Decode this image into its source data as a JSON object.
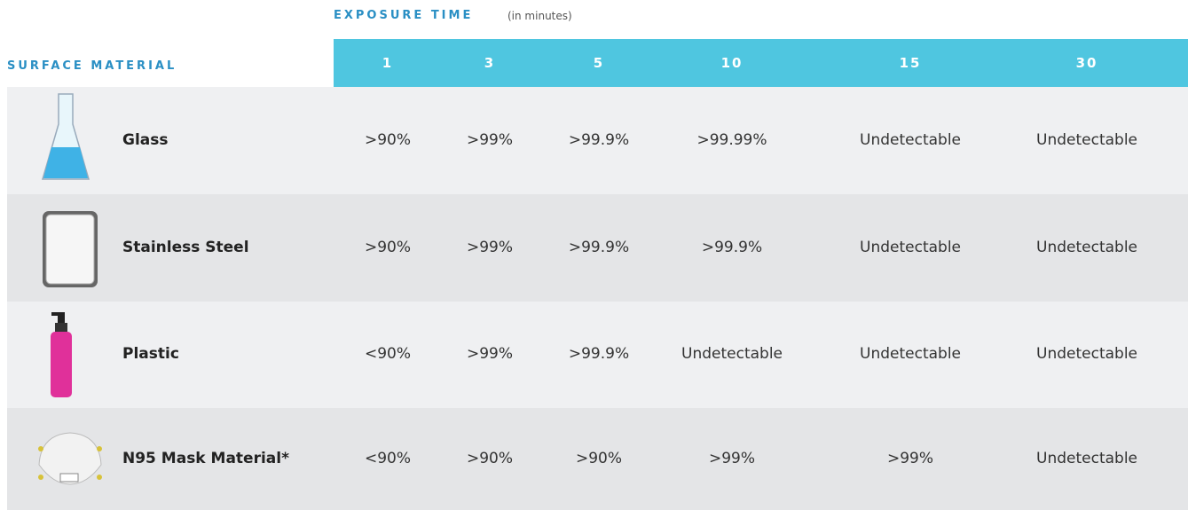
{
  "header": {
    "exposure_label": "EXPOSURE TIME",
    "exposure_unit": "(in minutes)",
    "surface_label": "SURFACE MATERIAL"
  },
  "table": {
    "columns": [
      1,
      3,
      5,
      10,
      15,
      30
    ],
    "rows": [
      {
        "material": "Glass",
        "values": [
          ">90%",
          ">99%",
          ">99.9%",
          ">99.99%",
          "Undetectable",
          "Undetectable"
        ]
      },
      {
        "material": "Stainless Steel",
        "values": [
          ">90%",
          ">99%",
          ">99.9%",
          ">99.9%",
          "Undetectable",
          "Undetectable"
        ]
      },
      {
        "material": "Plastic",
        "values": [
          "<90%",
          ">99%",
          ">99.9%",
          "Undetectable",
          "Undetectable",
          "Undetectable"
        ]
      },
      {
        "material": "N95 Mask Material*",
        "values": [
          "<90%",
          ">90%",
          ">90%",
          ">99%",
          ">99%",
          "Undetectable"
        ]
      }
    ]
  }
}
